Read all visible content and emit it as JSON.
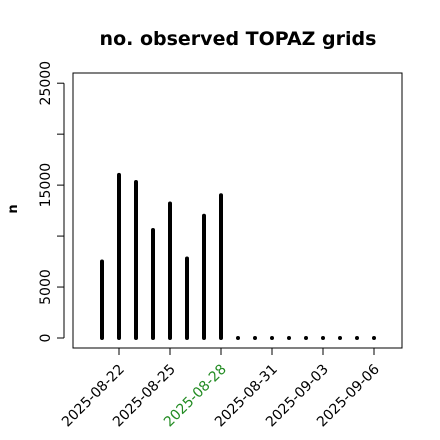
{
  "chart_data": {
    "type": "bar",
    "title": "no. observed TOPAZ grids",
    "xlabel": "",
    "ylabel": "n",
    "ylim": [
      0,
      26000
    ],
    "yticks": [
      0,
      5000,
      10000,
      15000,
      20000,
      25000
    ],
    "ytick_labels": [
      "0",
      "5000",
      "",
      "15000",
      "",
      "25000"
    ],
    "grid": false,
    "x_dates": [
      "2025-08-21",
      "2025-08-22",
      "2025-08-23",
      "2025-08-24",
      "2025-08-25",
      "2025-08-26",
      "2025-08-27",
      "2025-08-28",
      "2025-08-29",
      "2025-08-30",
      "2025-08-31",
      "2025-09-01",
      "2025-09-02",
      "2025-09-03",
      "2025-09-04",
      "2025-09-05",
      "2025-09-06"
    ],
    "values": [
      7500,
      16000,
      15300,
      10600,
      13200,
      7800,
      12000,
      14000,
      0,
      0,
      0,
      0,
      0,
      0,
      0,
      0,
      0
    ],
    "xticks": [
      "2025-08-22",
      "2025-08-25",
      "2025-08-28",
      "2025-08-31",
      "2025-09-03",
      "2025-09-06"
    ],
    "highlight_tick": "2025-08-28",
    "highlight_color": "#228B22",
    "bar_color": "#000000"
  }
}
